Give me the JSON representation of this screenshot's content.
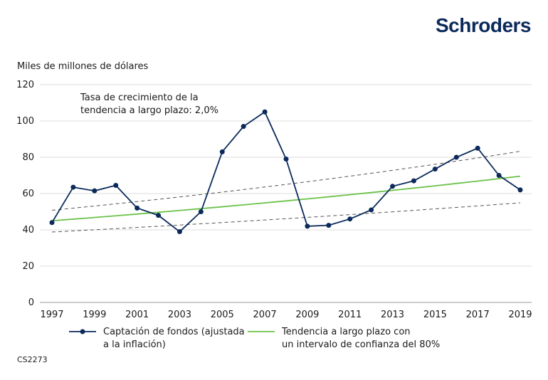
{
  "brand": "Schroders",
  "footer_code": "CS2273",
  "chart_data": {
    "type": "line",
    "ylabel": "Miles de millones de dólares",
    "ylim": [
      0,
      120
    ],
    "yticks": [
      0,
      20,
      40,
      60,
      80,
      100,
      120
    ],
    "xlim": [
      1997,
      2019
    ],
    "xticks": [
      1997,
      1999,
      2001,
      2003,
      2005,
      2007,
      2009,
      2011,
      2013,
      2015,
      2017,
      2019
    ],
    "grid": true,
    "legend_placement": "bottom",
    "annotation": "Tasa de crecimiento de la tendencia a largo plazo: 2,0%",
    "annotation_lines": [
      "Tasa de crecimiento de la",
      "tendencia a largo plazo: 2,0%"
    ],
    "x": [
      1997,
      1998,
      1999,
      2000,
      2001,
      2002,
      2003,
      2004,
      2005,
      2006,
      2007,
      2008,
      2009,
      2010,
      2011,
      2012,
      2013,
      2014,
      2015,
      2016,
      2017,
      2018,
      2019
    ],
    "series": [
      {
        "name": "Captación de fondos (ajustada a la inflación)",
        "legend_lines": [
          "Captación de fondos (ajustada",
          "a la inflación)"
        ],
        "color": "#0b2a5b",
        "style": "line-markers",
        "values": [
          44,
          63.5,
          61.5,
          64.5,
          52,
          48,
          39,
          50,
          83,
          97,
          105,
          79,
          42,
          42.5,
          46,
          51,
          64,
          67,
          73.5,
          80,
          85,
          70,
          62
        ]
      },
      {
        "name": "Tendencia a largo plazo con un intervalo de confianza del 80%",
        "legend_lines": [
          "Tendencia a largo plazo con",
          "un intervalo de confianza del 80%"
        ],
        "color": "#6cc24a",
        "style": "line",
        "start": 45,
        "growth_rate": 0.02,
        "upper_band": [
          50.8,
          83.3
        ],
        "lower_band": [
          38.8,
          54.9
        ],
        "band_color": "#555555"
      }
    ]
  }
}
